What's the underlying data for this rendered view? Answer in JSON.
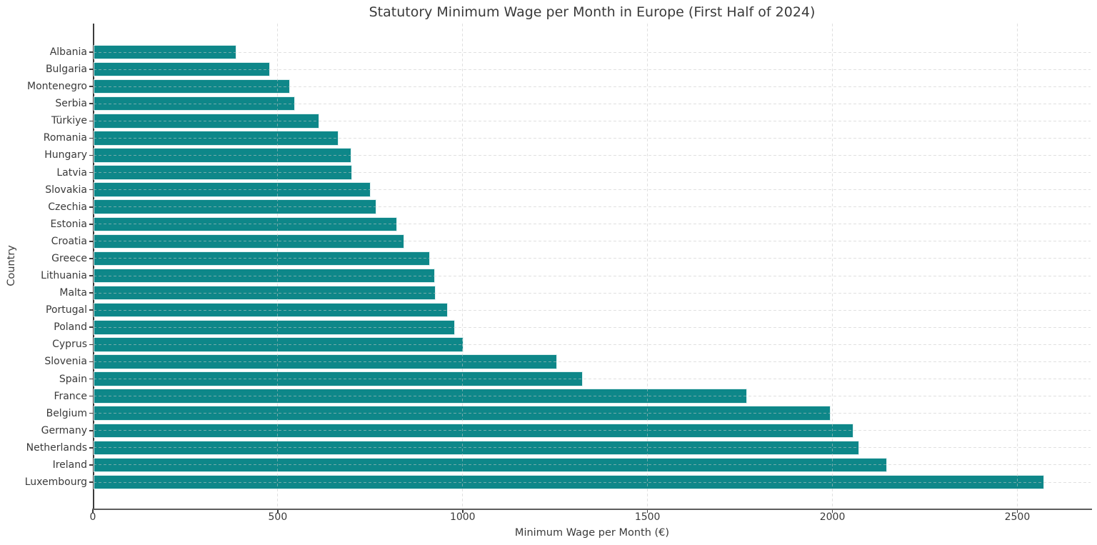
{
  "chart_data": {
    "type": "bar",
    "orientation": "horizontal",
    "title": "Statutory Minimum Wage per Month in Europe (First Half of 2024)",
    "xlabel": "Minimum Wage per Month (€)",
    "ylabel": "Country",
    "categories": [
      "Albania",
      "Bulgaria",
      "Montenegro",
      "Serbia",
      "Türkiye",
      "Romania",
      "Hungary",
      "Latvia",
      "Slovakia",
      "Czechia",
      "Estonia",
      "Croatia",
      "Greece",
      "Lithuania",
      "Malta",
      "Portugal",
      "Poland",
      "Cyprus",
      "Slovenia",
      "Spain",
      "France",
      "Belgium",
      "Germany",
      "Netherlands",
      "Ireland",
      "Luxembourg"
    ],
    "values": [
      386,
      477,
      532,
      544,
      610,
      663,
      697,
      700,
      750,
      764,
      820,
      840,
      910,
      924,
      925,
      957,
      978,
      1000,
      1254,
      1323,
      1767,
      1994,
      2054,
      2070,
      2146,
      2571
    ],
    "xticks": [
      0,
      500,
      1000,
      1500,
      2000,
      2500
    ],
    "xlim": [
      0,
      2700
    ],
    "grid": true,
    "legend": null,
    "colors": {
      "bar_fill": "#0e8789",
      "bar_edge": "#def0f0",
      "grid": "#c6c6c6",
      "spine": "#3c3c3c",
      "text": "#3a3a3a",
      "background": "#ffffff"
    }
  }
}
